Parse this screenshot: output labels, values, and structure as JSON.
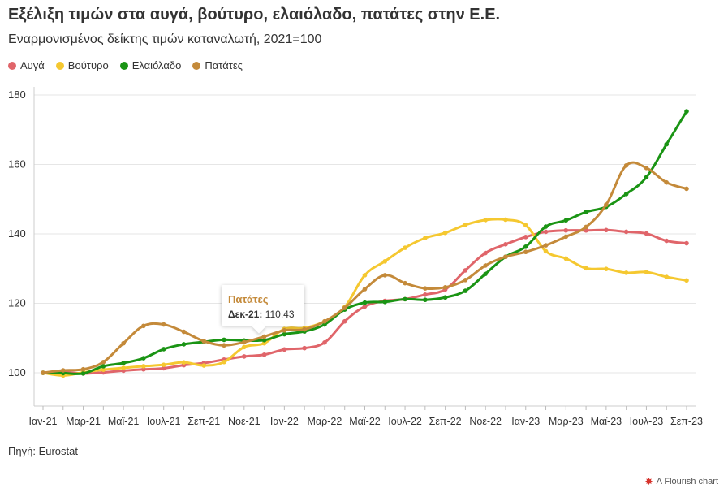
{
  "header": {
    "title": "Εξέλιξη τιμών στα αυγά, βούτυρο, ελαιόλαδο, πατάτες στην Ε.Ε.",
    "subtitle": "Εναρμονισμένος δείκτης τιμών καταναλωτή, 2021=100"
  },
  "legend": [
    {
      "label": "Αυγά",
      "color": "#e0656a"
    },
    {
      "label": "Βούτυρο",
      "color": "#f5c830"
    },
    {
      "label": "Ελαιόλαδο",
      "color": "#1a9414"
    },
    {
      "label": "Πατάτες",
      "color": "#c48a3a"
    }
  ],
  "tooltip": {
    "series": "Πατάτες",
    "date": "Δεκ-21:",
    "value": "110,43"
  },
  "footer": {
    "source": "Πηγή: Eurostat",
    "credit": "A Flourish chart"
  },
  "chart_data": {
    "type": "line",
    "title": "Εξέλιξη τιμών στα αυγά, βούτυρο, ελαιόλαδο, πατάτες στην Ε.Ε.",
    "subtitle": "Εναρμονισμένος δείκτης τιμών καταναλωτή, 2021=100",
    "ylim": [
      90,
      180
    ],
    "yticks": [
      100,
      120,
      140,
      160,
      180
    ],
    "categories": [
      "Ιαν-21",
      "Φεβ-21",
      "Μαρ-21",
      "Απρ-21",
      "Μαϊ-21",
      "Ιουν-21",
      "Ιουλ-21",
      "Αυγ-21",
      "Σεπ-21",
      "Οκτ-21",
      "Νοε-21",
      "Δεκ-21",
      "Ιαν-22",
      "Φεβ-22",
      "Μαρ-22",
      "Απρ-22",
      "Μαϊ-22",
      "Ιουν-22",
      "Ιουλ-22",
      "Αυγ-22",
      "Σεπ-22",
      "Οκτ-22",
      "Νοε-22",
      "Δεκ-22",
      "Ιαν-23",
      "Φεβ-23",
      "Μαρ-23",
      "Απρ-23",
      "Μαϊ-23",
      "Ιουν-23",
      "Ιουλ-23",
      "Αυγ-23",
      "Σεπ-23"
    ],
    "xtick_labels": [
      "Ιαν-21",
      "Μαρ-21",
      "Μαϊ-21",
      "Ιουλ-21",
      "Σεπ-21",
      "Νοε-21",
      "Ιαν-22",
      "Μαρ-22",
      "Μαϊ-22",
      "Ιουλ-22",
      "Σεπ-22",
      "Νοε-22",
      "Ιαν-23",
      "Μαρ-23",
      "Μαϊ-23",
      "Ιουλ-23",
      "Σεπ-23"
    ],
    "series": [
      {
        "name": "Αυγά",
        "color": "#e0656a",
        "values": [
          100,
          100.2,
          99.8,
          100.1,
          100.6,
          101.0,
          101.3,
          102.2,
          102.8,
          103.8,
          104.7,
          105.2,
          106.7,
          107.1,
          108.7,
          114.8,
          119.1,
          120.7,
          121.2,
          122.5,
          124.0,
          129.5,
          134.5,
          137.0,
          139.1,
          140.6,
          141.0,
          141.0,
          141.1,
          140.6,
          140.1,
          138.0,
          137.3
        ]
      },
      {
        "name": "Βούτυρο",
        "color": "#f5c830",
        "values": [
          100,
          99.2,
          100.1,
          100.9,
          101.4,
          101.9,
          102.3,
          103.0,
          102.1,
          103.1,
          107.4,
          108.5,
          112.6,
          112.9,
          114.8,
          118.9,
          128.1,
          132.1,
          136.0,
          138.8,
          140.3,
          142.6,
          144.0,
          144.1,
          142.5,
          135.0,
          132.9,
          130.1,
          129.9,
          128.8,
          129.0,
          127.6,
          126.6
        ]
      },
      {
        "name": "Ελαιόλαδο",
        "color": "#1a9414",
        "values": [
          100,
          99.9,
          99.8,
          101.9,
          102.8,
          104.2,
          106.8,
          108.2,
          108.9,
          109.5,
          109.3,
          109.4,
          111.1,
          111.9,
          113.9,
          118.2,
          120.2,
          120.4,
          121.2,
          121.0,
          121.7,
          123.6,
          128.5,
          133.4,
          136.3,
          142.1,
          143.9,
          146.3,
          147.8,
          151.5,
          156.3,
          165.8,
          175.3
        ]
      },
      {
        "name": "Πατάτες",
        "color": "#c48a3a",
        "values": [
          100,
          100.7,
          101.0,
          103.1,
          108.5,
          113.5,
          113.9,
          111.8,
          109.1,
          107.9,
          108.8,
          110.43,
          112.2,
          112.5,
          114.8,
          118.7,
          124.1,
          128.1,
          125.8,
          124.3,
          124.6,
          126.7,
          130.9,
          133.4,
          134.8,
          136.7,
          139.2,
          142.0,
          148.4,
          159.7,
          159.0,
          154.8,
          153.0
        ]
      }
    ]
  }
}
